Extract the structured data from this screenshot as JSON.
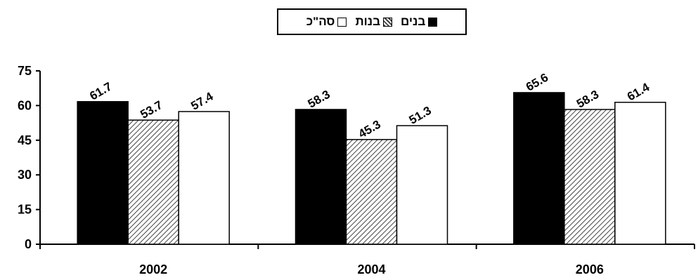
{
  "chart_data": {
    "type": "bar",
    "categories": [
      "2002",
      "2004",
      "2006"
    ],
    "series": [
      {
        "name": "בנים",
        "values": [
          61.7,
          58.3,
          65.6
        ],
        "color": "#000000"
      },
      {
        "name": "בנות",
        "values": [
          53.7,
          45.3,
          58.3
        ],
        "color": "#cfcfcf"
      },
      {
        "name": "סה\"כ",
        "values": [
          57.4,
          51.3,
          61.4
        ],
        "color": "#ffffff"
      }
    ],
    "title": "",
    "xlabel": "",
    "ylabel": "",
    "ylim": [
      0,
      75
    ],
    "yticks": [
      "0",
      "15",
      "30",
      "45",
      "60",
      "75"
    ],
    "grid": false,
    "legend_position": "top-center",
    "data_labels": true
  }
}
